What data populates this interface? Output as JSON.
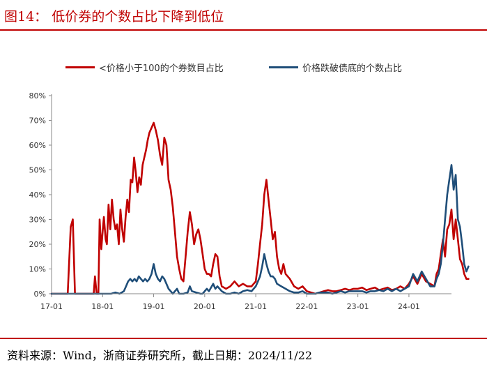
{
  "header": {
    "title": "图14：  低价券的个数占比下降到低位"
  },
  "source": {
    "text": "资料来源：Wind，浙商证券研究所，截止日期：2024/11/22"
  },
  "chart_data": {
    "type": "line",
    "ylim": [
      0,
      80
    ],
    "yticks": [
      0,
      10,
      20,
      30,
      40,
      50,
      60,
      70,
      80
    ],
    "yticklabels": [
      "0%",
      "10%",
      "20%",
      "30%",
      "40%",
      "50%",
      "60%",
      "70%",
      "80%"
    ],
    "xlim": [
      0,
      94
    ],
    "xticks": [
      0,
      12,
      24,
      36,
      48,
      60,
      72,
      84
    ],
    "xticklabels": [
      "17-01",
      "18-01",
      "19-01",
      "20-01",
      "21-01",
      "22-01",
      "23-01",
      "24-01"
    ],
    "legend": "top",
    "grid": false,
    "series": [
      {
        "name": "<价格小于100的个券数目占比",
        "color": "#c00000",
        "points": [
          [
            0,
            0
          ],
          [
            3.8,
            0
          ],
          [
            4.5,
            27
          ],
          [
            5,
            30
          ],
          [
            5.5,
            0
          ],
          [
            6,
            0
          ],
          [
            9.9,
            0
          ],
          [
            10.2,
            7
          ],
          [
            10.6,
            0
          ],
          [
            11,
            0
          ],
          [
            11.3,
            30
          ],
          [
            11.7,
            18
          ],
          [
            12,
            25
          ],
          [
            12.3,
            31
          ],
          [
            12.7,
            22
          ],
          [
            13,
            20
          ],
          [
            13.4,
            36
          ],
          [
            13.8,
            26
          ],
          [
            14.2,
            38
          ],
          [
            14.6,
            30
          ],
          [
            15,
            26
          ],
          [
            15.4,
            28
          ],
          [
            15.8,
            20
          ],
          [
            16.2,
            34
          ],
          [
            16.6,
            26
          ],
          [
            17,
            21
          ],
          [
            17.4,
            31
          ],
          [
            17.8,
            38
          ],
          [
            18.2,
            33
          ],
          [
            18.6,
            46
          ],
          [
            19,
            45
          ],
          [
            19.4,
            55
          ],
          [
            19.8,
            49
          ],
          [
            20.2,
            41
          ],
          [
            20.6,
            47
          ],
          [
            21,
            44
          ],
          [
            21.4,
            52
          ],
          [
            21.8,
            55
          ],
          [
            22.2,
            58
          ],
          [
            22.6,
            62
          ],
          [
            23,
            65
          ],
          [
            23.5,
            67
          ],
          [
            24,
            69
          ],
          [
            24.5,
            66
          ],
          [
            25,
            62
          ],
          [
            25.5,
            56
          ],
          [
            26,
            52
          ],
          [
            26.5,
            63
          ],
          [
            27,
            60
          ],
          [
            27.5,
            46
          ],
          [
            28,
            42
          ],
          [
            28.5,
            35
          ],
          [
            29,
            25
          ],
          [
            29.5,
            15
          ],
          [
            30,
            10
          ],
          [
            30.5,
            6
          ],
          [
            31,
            5
          ],
          [
            31.5,
            15
          ],
          [
            32,
            25
          ],
          [
            32.5,
            33
          ],
          [
            33,
            28
          ],
          [
            33.5,
            20
          ],
          [
            34,
            24
          ],
          [
            34.5,
            26
          ],
          [
            35,
            22
          ],
          [
            35.5,
            16
          ],
          [
            36,
            10
          ],
          [
            36.5,
            8
          ],
          [
            37,
            8
          ],
          [
            37.5,
            7
          ],
          [
            38,
            12
          ],
          [
            38.5,
            16
          ],
          [
            39,
            15
          ],
          [
            39.5,
            7
          ],
          [
            40,
            3
          ],
          [
            41,
            2
          ],
          [
            42,
            3
          ],
          [
            43,
            5
          ],
          [
            44,
            3
          ],
          [
            45,
            4
          ],
          [
            46,
            3
          ],
          [
            47,
            3
          ],
          [
            48,
            5
          ],
          [
            48.5,
            12
          ],
          [
            49,
            20
          ],
          [
            49.5,
            28
          ],
          [
            50,
            40
          ],
          [
            50.5,
            46
          ],
          [
            51,
            38
          ],
          [
            51.5,
            30
          ],
          [
            52,
            22
          ],
          [
            52.5,
            25
          ],
          [
            53,
            15
          ],
          [
            53.5,
            10
          ],
          [
            54,
            8
          ],
          [
            54.5,
            12
          ],
          [
            55,
            8
          ],
          [
            56,
            6
          ],
          [
            57,
            3
          ],
          [
            58,
            2
          ],
          [
            59,
            3
          ],
          [
            60,
            1
          ],
          [
            61,
            0.5
          ],
          [
            62,
            0
          ],
          [
            63,
            0.5
          ],
          [
            64,
            1
          ],
          [
            65,
            1.5
          ],
          [
            66,
            1
          ],
          [
            67,
            1
          ],
          [
            68,
            1.5
          ],
          [
            69,
            2
          ],
          [
            70,
            1.5
          ],
          [
            71,
            2
          ],
          [
            72,
            2
          ],
          [
            73,
            2.5
          ],
          [
            74,
            1.5
          ],
          [
            75,
            2
          ],
          [
            76,
            2.5
          ],
          [
            77,
            1.5
          ],
          [
            78,
            2
          ],
          [
            79,
            2.5
          ],
          [
            80,
            1.5
          ],
          [
            81,
            2
          ],
          [
            82,
            3
          ],
          [
            83,
            2
          ],
          [
            84,
            4
          ],
          [
            85,
            7
          ],
          [
            86,
            4
          ],
          [
            87,
            8
          ],
          [
            88,
            5
          ],
          [
            89,
            4
          ],
          [
            90,
            3
          ],
          [
            90.5,
            8
          ],
          [
            91,
            10
          ],
          [
            91.5,
            16
          ],
          [
            92,
            22
          ],
          [
            92.5,
            15
          ],
          [
            93,
            26
          ],
          [
            93.5,
            28
          ],
          [
            94,
            34
          ],
          [
            94.5,
            22
          ],
          [
            95,
            30
          ],
          [
            95.5,
            22
          ],
          [
            96,
            14
          ],
          [
            96.5,
            12
          ],
          [
            97,
            8
          ],
          [
            97.5,
            6
          ],
          [
            98,
            6
          ]
        ]
      },
      {
        "name": "价格跌破债底的个数占比",
        "color": "#1f4e79",
        "points": [
          [
            0,
            0
          ],
          [
            13,
            0
          ],
          [
            14,
            0
          ],
          [
            15,
            0.5
          ],
          [
            16,
            0
          ],
          [
            17,
            1
          ],
          [
            17.5,
            3
          ],
          [
            18,
            5
          ],
          [
            18.5,
            6
          ],
          [
            19,
            5
          ],
          [
            19.5,
            6
          ],
          [
            20,
            5
          ],
          [
            20.5,
            7
          ],
          [
            21,
            6
          ],
          [
            21.5,
            5
          ],
          [
            22,
            6
          ],
          [
            22.5,
            5
          ],
          [
            23,
            6
          ],
          [
            23.5,
            8
          ],
          [
            24,
            12
          ],
          [
            24.5,
            8
          ],
          [
            25,
            6
          ],
          [
            25.5,
            5
          ],
          [
            26,
            7
          ],
          [
            26.5,
            6
          ],
          [
            27,
            4
          ],
          [
            27.5,
            2
          ],
          [
            28,
            1
          ],
          [
            28.5,
            0
          ],
          [
            29,
            1
          ],
          [
            29.5,
            2
          ],
          [
            30,
            0
          ],
          [
            31,
            0
          ],
          [
            32,
            0.5
          ],
          [
            32.5,
            3
          ],
          [
            33,
            1
          ],
          [
            34,
            0.5
          ],
          [
            35,
            0
          ],
          [
            35.5,
            0
          ],
          [
            36,
            1
          ],
          [
            36.5,
            2
          ],
          [
            37,
            1
          ],
          [
            38,
            4
          ],
          [
            38.5,
            2
          ],
          [
            39,
            3
          ],
          [
            40,
            1
          ],
          [
            41,
            0
          ],
          [
            42,
            0
          ],
          [
            43,
            0.5
          ],
          [
            44,
            0
          ],
          [
            45,
            1
          ],
          [
            46,
            1.5
          ],
          [
            47,
            1
          ],
          [
            48,
            3
          ],
          [
            48.5,
            5
          ],
          [
            49,
            7
          ],
          [
            49.5,
            11
          ],
          [
            50,
            16
          ],
          [
            50.5,
            12
          ],
          [
            51,
            9
          ],
          [
            51.5,
            7
          ],
          [
            52,
            7
          ],
          [
            52.5,
            6
          ],
          [
            53,
            4
          ],
          [
            54,
            3
          ],
          [
            55,
            2
          ],
          [
            56,
            1
          ],
          [
            57,
            0.5
          ],
          [
            58,
            0.5
          ],
          [
            59,
            1
          ],
          [
            60,
            0
          ],
          [
            61,
            0
          ],
          [
            62,
            0
          ],
          [
            63,
            0.5
          ],
          [
            64,
            0.5
          ],
          [
            65,
            0.5
          ],
          [
            66,
            0
          ],
          [
            67,
            0.5
          ],
          [
            68,
            1
          ],
          [
            69,
            0.5
          ],
          [
            70,
            1
          ],
          [
            71,
            1
          ],
          [
            72,
            1
          ],
          [
            73,
            1
          ],
          [
            74,
            0.5
          ],
          [
            75,
            1
          ],
          [
            76,
            1
          ],
          [
            77,
            1.5
          ],
          [
            78,
            1
          ],
          [
            79,
            2
          ],
          [
            80,
            1
          ],
          [
            81,
            2
          ],
          [
            82,
            1
          ],
          [
            83,
            2
          ],
          [
            84,
            3
          ],
          [
            85,
            8
          ],
          [
            86,
            5
          ],
          [
            87,
            9
          ],
          [
            88,
            6
          ],
          [
            89,
            3
          ],
          [
            90,
            3
          ],
          [
            90.5,
            6
          ],
          [
            91,
            8
          ],
          [
            91.5,
            12
          ],
          [
            92,
            20
          ],
          [
            92.5,
            30
          ],
          [
            93,
            40
          ],
          [
            93.5,
            46
          ],
          [
            94,
            52
          ],
          [
            94.5,
            42
          ],
          [
            95,
            48
          ],
          [
            95.5,
            30
          ],
          [
            96,
            27
          ],
          [
            96.5,
            20
          ],
          [
            97,
            12
          ],
          [
            97.5,
            9
          ],
          [
            98,
            11
          ]
        ]
      }
    ]
  }
}
